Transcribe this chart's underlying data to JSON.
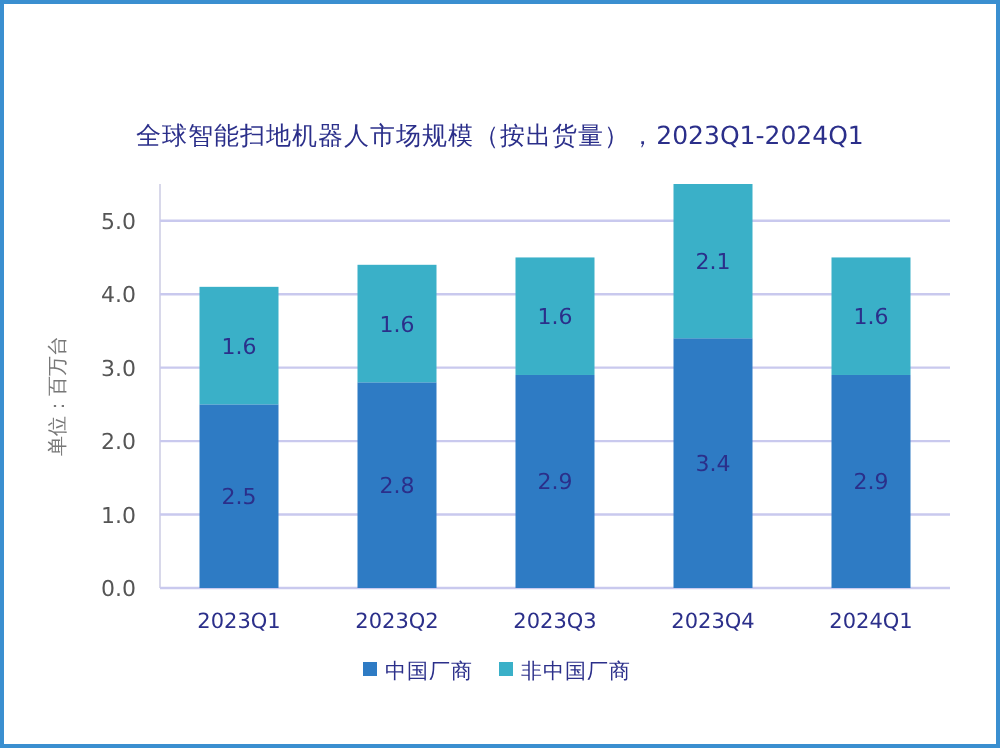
{
  "chart_data": {
    "type": "bar",
    "stacked": true,
    "title": "全球智能扫地机器人市场规模（按出货量），2023Q1-2024Q1",
    "ylabel": "单位：百万台",
    "categories": [
      "2023Q1",
      "2023Q2",
      "2023Q3",
      "2023Q4",
      "2024Q1"
    ],
    "series": [
      {
        "name": "中国厂商",
        "color": "#2e7bc4",
        "values": [
          2.5,
          2.8,
          2.9,
          3.4,
          2.9
        ]
      },
      {
        "name": "非中国厂商",
        "color": "#3ab0c8",
        "values": [
          1.6,
          1.6,
          1.6,
          2.1,
          1.6
        ]
      }
    ],
    "ylim": [
      0,
      5.5
    ],
    "yticks": [
      {
        "value": 0,
        "label": "0.0"
      },
      {
        "value": 1,
        "label": "1.0"
      },
      {
        "value": 2,
        "label": "2.0"
      },
      {
        "value": 3,
        "label": "3.0"
      },
      {
        "value": 4,
        "label": "4.0"
      },
      {
        "value": 5,
        "label": "5.0"
      }
    ],
    "grid": "y",
    "legend": "bottom",
    "data_labels": true
  }
}
